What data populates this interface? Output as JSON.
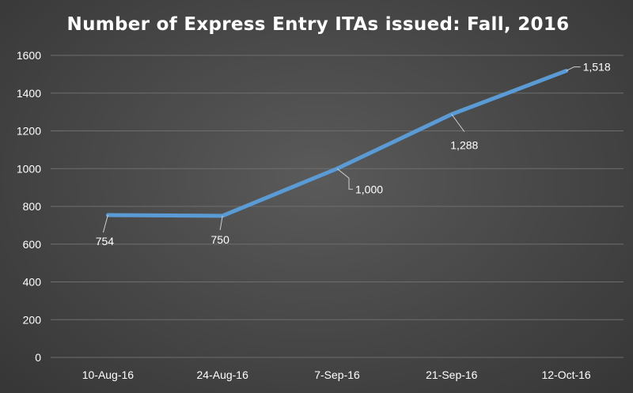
{
  "chart_data": {
    "type": "line",
    "title": "Number of Express Entry ITAs issued: Fall, 2016",
    "xlabel": "",
    "ylabel": "",
    "categories": [
      "10-Aug-16",
      "24-Aug-16",
      "7-Sep-16",
      "21-Sep-16",
      "12-Oct-16"
    ],
    "series": [
      {
        "values": [
          754,
          750,
          1000,
          1288,
          1518
        ],
        "labels": [
          "754",
          "750",
          "1,000",
          "1,288",
          "1,518"
        ],
        "color": "#5b9bd5"
      }
    ],
    "ylim": [
      0,
      1600
    ],
    "yticks": [
      "0",
      "200",
      "400",
      "600",
      "800",
      "1000",
      "1200",
      "1400",
      "1600"
    ],
    "grid": true,
    "legend": "none"
  }
}
